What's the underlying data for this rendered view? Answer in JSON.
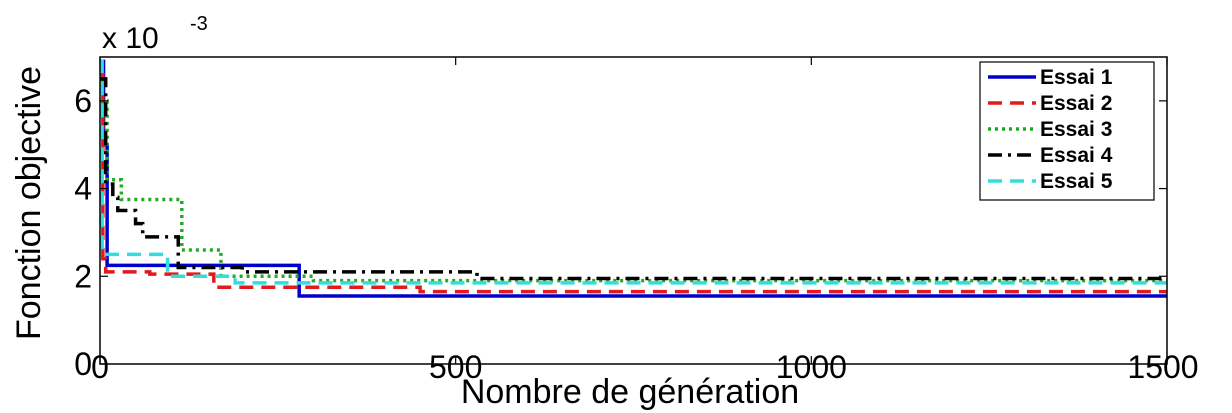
{
  "chart_data": {
    "type": "line",
    "xlabel": "Nombre de génération",
    "ylabel": "Fonction objective",
    "y_exponent_prefix": "x 10",
    "y_exponent_power": "-3",
    "xlim": [
      0,
      1500
    ],
    "ylim": [
      0,
      7
    ],
    "x_ticks": [
      0,
      500,
      1000,
      1500
    ],
    "x_tick_labels": [
      "0",
      "500",
      "1000",
      "1500"
    ],
    "y_ticks": [
      0,
      2,
      4,
      6
    ],
    "y_tick_labels": [
      "0",
      "2",
      "4",
      "6"
    ],
    "legend_position": "top-right",
    "grid": false,
    "series": [
      {
        "name": "Essai 1",
        "color": "#0000cc",
        "dash": "solid",
        "points": [
          [
            0,
            6.9
          ],
          [
            5,
            6.9
          ],
          [
            5,
            5.0
          ],
          [
            10,
            5.0
          ],
          [
            10,
            2.25
          ],
          [
            280,
            2.25
          ],
          [
            280,
            1.55
          ],
          [
            1500,
            1.55
          ]
        ]
      },
      {
        "name": "Essai 2",
        "color": "#e31a1c",
        "dash": "dashed",
        "points": [
          [
            0,
            6.6
          ],
          [
            4,
            6.6
          ],
          [
            4,
            2.4
          ],
          [
            8,
            2.4
          ],
          [
            8,
            2.1
          ],
          [
            70,
            2.1
          ],
          [
            70,
            2.05
          ],
          [
            160,
            2.05
          ],
          [
            160,
            1.75
          ],
          [
            450,
            1.75
          ],
          [
            450,
            1.65
          ],
          [
            1500,
            1.65
          ]
        ]
      },
      {
        "name": "Essai 3",
        "color": "#22aa22",
        "dash": "dotted",
        "points": [
          [
            0,
            6.0
          ],
          [
            10,
            6.0
          ],
          [
            10,
            4.2
          ],
          [
            30,
            4.2
          ],
          [
            30,
            3.75
          ],
          [
            115,
            3.75
          ],
          [
            115,
            2.6
          ],
          [
            170,
            2.6
          ],
          [
            170,
            2.0
          ],
          [
            300,
            2.0
          ],
          [
            300,
            1.9
          ],
          [
            1500,
            1.9
          ]
        ]
      },
      {
        "name": "Essai 4",
        "color": "#000000",
        "dash": "dashdot",
        "points": [
          [
            0,
            6.5
          ],
          [
            8,
            6.5
          ],
          [
            8,
            4.1
          ],
          [
            18,
            4.1
          ],
          [
            18,
            3.8
          ],
          [
            25,
            3.8
          ],
          [
            25,
            3.5
          ],
          [
            50,
            3.5
          ],
          [
            50,
            3.2
          ],
          [
            60,
            3.2
          ],
          [
            60,
            2.9
          ],
          [
            110,
            2.9
          ],
          [
            110,
            2.2
          ],
          [
            200,
            2.2
          ],
          [
            200,
            2.1
          ],
          [
            300,
            2.1
          ],
          [
            300,
            2.1
          ],
          [
            530,
            2.1
          ],
          [
            530,
            1.95
          ],
          [
            1500,
            1.95
          ]
        ]
      },
      {
        "name": "Essai 5",
        "color": "#33dddd",
        "dash": "dashed",
        "points": [
          [
            0,
            6.9
          ],
          [
            3,
            6.9
          ],
          [
            3,
            2.5
          ],
          [
            95,
            2.5
          ],
          [
            95,
            2.0
          ],
          [
            190,
            2.0
          ],
          [
            190,
            1.85
          ],
          [
            900,
            1.85
          ],
          [
            900,
            1.85
          ],
          [
            1500,
            1.85
          ]
        ]
      }
    ]
  }
}
